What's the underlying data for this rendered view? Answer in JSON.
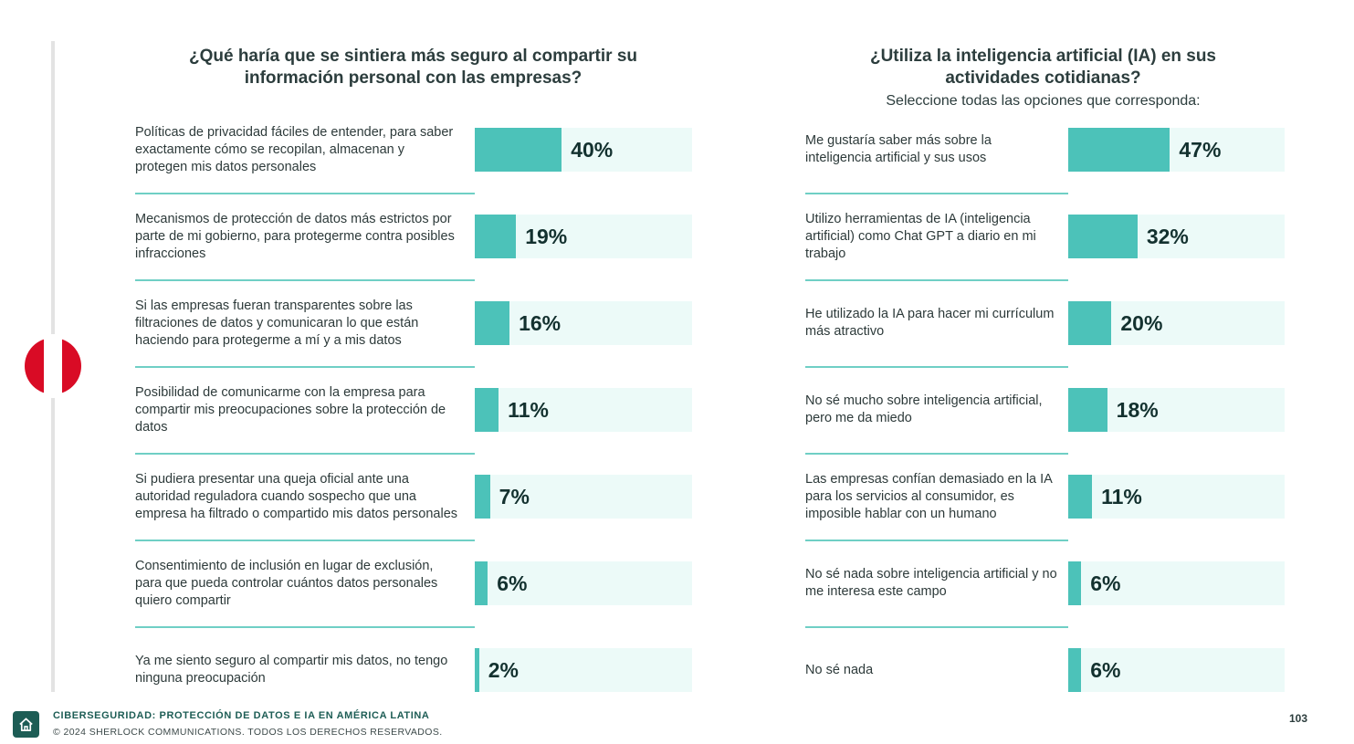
{
  "colors": {
    "bar": "#4cc2b9",
    "bar_bg": "#ecfaf8",
    "separator": "#6fcfc5",
    "flag_red": "#d90b25",
    "brand": "#1d5d55"
  },
  "chart_data": [
    {
      "type": "bar",
      "orientation": "horizontal",
      "title": "¿Qué haría que se sintiera más seguro al compartir su información personal con las empresas?",
      "xlim": [
        0,
        100
      ],
      "categories": [
        "Políticas de privacidad fáciles de entender, para saber exactamente cómo se recopilan, almacenan y protegen mis datos personales",
        "Mecanismos de protección de datos más estrictos por parte de mi gobierno, para protegerme contra posibles infracciones",
        "Si las empresas fueran transparentes sobre las filtraciones de datos y comunicaran lo que están haciendo para protegerme a mí y a mis datos",
        "Posibilidad de comunicarme con la empresa para compartir mis preocupaciones sobre la protección de datos",
        "Si pudiera presentar una queja oficial ante una autoridad reguladora cuando sospecho que una empresa ha filtrado o compartido mis datos personales",
        "Consentimiento de inclusión en lugar de exclusión, para que pueda controlar cuántos datos personales quiero compartir",
        "Ya me siento seguro al compartir mis datos, no tengo ninguna preocupación"
      ],
      "values": [
        40,
        19,
        16,
        11,
        7,
        6,
        2
      ],
      "value_labels": [
        "40%",
        "19%",
        "16%",
        "11%",
        "7%",
        "6%",
        "2%"
      ]
    },
    {
      "type": "bar",
      "orientation": "horizontal",
      "title": "¿Utiliza la inteligencia artificial (IA) en sus actividades cotidianas?",
      "subtitle": "Seleccione todas las opciones que corresponda:",
      "xlim": [
        0,
        100
      ],
      "categories": [
        "Me gustaría saber más sobre la inteligencia artificial y sus usos",
        "Utilizo herramientas de IA (inteligencia artificial) como Chat GPT a diario en mi trabajo",
        "He utilizado la IA para hacer mi currículum más atractivo",
        "No sé mucho sobre inteligencia artificial, pero me da miedo",
        "Las empresas confían demasiado en la IA para los servicios al consumidor, es imposible hablar con un humano",
        "No sé nada sobre inteligencia artificial y no me interesa este campo",
        "No sé nada"
      ],
      "values": [
        47,
        32,
        20,
        18,
        11,
        6,
        6
      ],
      "value_labels": [
        "47%",
        "32%",
        "20%",
        "18%",
        "11%",
        "6%",
        "6%"
      ]
    }
  ],
  "footer": {
    "title": "CIBERSEGURIDAD: PROTECCIÓN DE DATOS E IA EN AMÉRICA LATINA",
    "copyright": "© 2024 SHERLOCK COMMUNICATIONS. TODOS LOS DERECHOS RESERVADOS.",
    "page_number": "103",
    "home_icon": "home-icon"
  }
}
